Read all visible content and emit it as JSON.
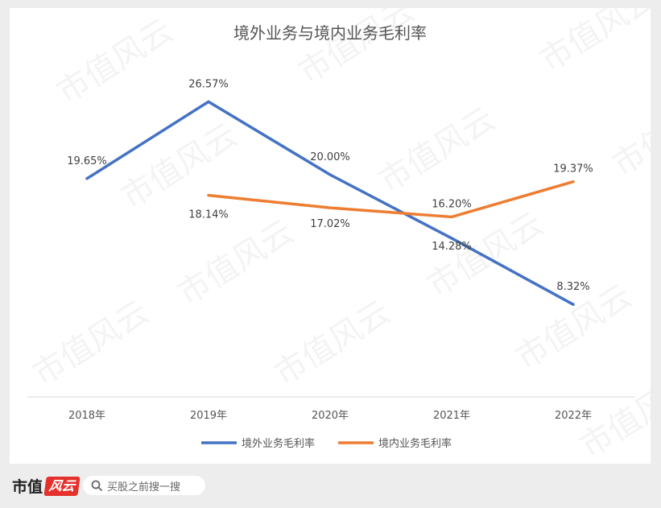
{
  "chart_data": {
    "type": "line",
    "title": "境外业务与境内业务毛利率",
    "categories": [
      "2018年",
      "2019年",
      "2020年",
      "2021年",
      "2022年"
    ],
    "ylim": [
      0,
      35
    ],
    "grid": false,
    "legend_position": "bottom",
    "series": [
      {
        "name": "境外业务毛利率",
        "color": "#4472c4",
        "values": [
          19.65,
          26.57,
          20.0,
          14.28,
          8.32
        ],
        "labels": [
          "19.65%",
          "26.57%",
          "20.00%",
          "14.28%",
          "8.32%"
        ]
      },
      {
        "name": "境内业务毛利率",
        "color": "#ed7d31",
        "values": [
          null,
          18.14,
          17.02,
          16.2,
          19.37
        ],
        "labels": [
          "",
          "18.14%",
          "17.02%",
          "16.20%",
          "19.37%"
        ]
      }
    ]
  },
  "watermark": "市值风云",
  "footer": {
    "brand": "市值",
    "brand_mark": "风云",
    "search_text": "买股之前搜一搜"
  }
}
